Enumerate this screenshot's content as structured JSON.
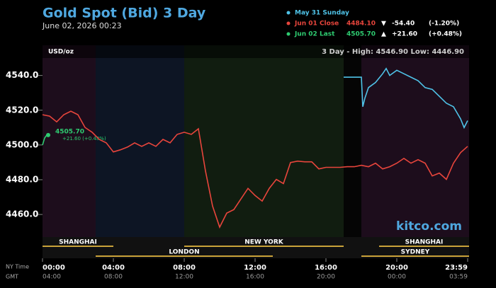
{
  "chart_data": {
    "type": "line",
    "title": "Gold Spot (Bid) 3 Day",
    "subtitle": "June 02, 2026 00:23",
    "unit_label": "USD/oz",
    "stats": "3 Day - High: 4546.90  Low: 4446.90",
    "watermark": "kitco.com",
    "x_axis_label": "NY Time",
    "x2_axis_label": "GMT",
    "xlim": [
      0,
      24
    ],
    "ylim": [
      4447,
      4548
    ],
    "xticks": [
      {
        "value": 0,
        "label": "00:00"
      },
      {
        "value": 4,
        "label": "04:00"
      },
      {
        "value": 8,
        "label": "08:00"
      },
      {
        "value": 12,
        "label": "12:00"
      },
      {
        "value": 16,
        "label": "16:00"
      },
      {
        "value": 20,
        "label": "20:00"
      },
      {
        "value": 24,
        "label": "23:59"
      }
    ],
    "x2tick_labels": [
      "04:00",
      "08:00",
      "12:00",
      "16:00",
      "20:00",
      "00:00",
      "03:59"
    ],
    "yticks": [
      {
        "value": 4460,
        "label": "4460.0"
      },
      {
        "value": 4480,
        "label": "4480.0"
      },
      {
        "value": 4500,
        "label": "4500.0"
      },
      {
        "value": 4520,
        "label": "4520.0"
      },
      {
        "value": 4540,
        "label": "4540.0"
      }
    ],
    "sessions": [
      "SHANGHAI",
      "LONDON",
      "NEW YORK",
      "SHANGHAI",
      "SYDNEY"
    ],
    "series": [
      {
        "name": "May 31 Sunday",
        "color": "#4fc3e8",
        "x": [
          17,
          18,
          18.08,
          18.2,
          18.4,
          18.8,
          19.2,
          19.4,
          19.6,
          20,
          20.4,
          20.8,
          21.2,
          21.6,
          22,
          22.4,
          22.8,
          23.2,
          23.6,
          23.8,
          24
        ],
        "values": [
          4539,
          4539,
          4522,
          4527,
          4533,
          4536,
          4541,
          4544,
          4540,
          4543,
          4541,
          4539,
          4537,
          4533,
          4532,
          4528,
          4524,
          4522,
          4515,
          4510,
          4514
        ]
      },
      {
        "name": "Jun 01 Close",
        "color": "#e8453c",
        "price": "4484.10",
        "arrow": "▼",
        "change": "-54.40",
        "percent": "(-1.20%)",
        "x": [
          0,
          0.4,
          0.8,
          1.2,
          1.6,
          2,
          2.4,
          2.8,
          3.2,
          3.6,
          4,
          4.4,
          4.8,
          5.2,
          5.6,
          6,
          6.4,
          6.8,
          7.2,
          7.6,
          8,
          8.4,
          8.8,
          9.2,
          9.6,
          10,
          10.4,
          10.8,
          11.2,
          11.6,
          12,
          12.4,
          12.8,
          13.2,
          13.6,
          14,
          14.4,
          14.8,
          15.2,
          15.6,
          16,
          16.4,
          16.8,
          17.2,
          17.6,
          18,
          18.4,
          18.8,
          19.2,
          19.6,
          20,
          20.4,
          20.8,
          21.2,
          21.6,
          22,
          22.4,
          22.8,
          23.2,
          23.6,
          24
        ],
        "values": [
          4517.4,
          4516.6,
          4513.3,
          4517.4,
          4519.4,
          4517.4,
          4510.1,
          4507.3,
          4503.2,
          4501.2,
          4496.0,
          4497.2,
          4498.8,
          4501.2,
          4499.2,
          4501.2,
          4499.2,
          4503.2,
          4501.2,
          4506.1,
          4507.3,
          4506.1,
          4509.3,
          4485.0,
          4464.8,
          4452.7,
          4460.8,
          4462.8,
          4468.9,
          4475.0,
          4470.9,
          4467.7,
          4475.0,
          4480.2,
          4477.8,
          4489.9,
          4490.7,
          4490.3,
          4490.3,
          4486.2,
          4487.1,
          4487.1,
          4487.1,
          4487.5,
          4487.5,
          4488.3,
          4487.5,
          4489.5,
          4486.2,
          4487.5,
          4489.5,
          4492.3,
          4489.5,
          4491.5,
          4489.5,
          4482.2,
          4483.8,
          4480.2,
          4489.5,
          4495.6,
          4499.2
        ]
      },
      {
        "name": "Jun 02 Last",
        "color": "#2ecc71",
        "price": "4505.70",
        "arrow": "▲",
        "change": "+21.60",
        "percent": "(+0.48%)",
        "x": [
          0,
          0.12,
          0.24
        ],
        "values": [
          4500,
          4504,
          4505.7
        ]
      }
    ],
    "annotations": [
      "4505.70",
      "+21.60 (+0.48%)"
    ]
  }
}
